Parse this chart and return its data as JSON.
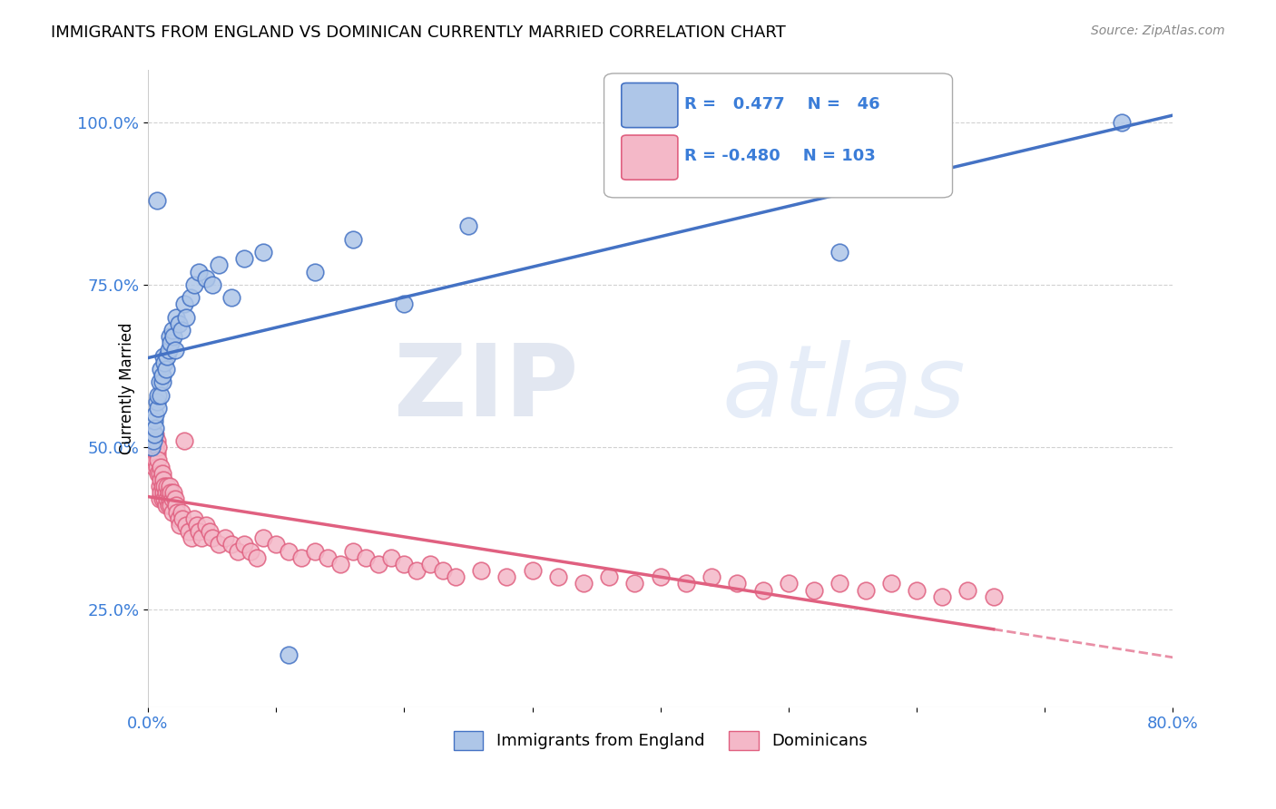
{
  "title": "IMMIGRANTS FROM ENGLAND VS DOMINICAN CURRENTLY MARRIED CORRELATION CHART",
  "source": "Source: ZipAtlas.com",
  "ylabel": "Currently Married",
  "ytick_labels": [
    "25.0%",
    "50.0%",
    "75.0%",
    "100.0%"
  ],
  "ytick_values": [
    0.25,
    0.5,
    0.75,
    1.0
  ],
  "xlim": [
    0.0,
    0.8
  ],
  "ylim": [
    0.1,
    1.08
  ],
  "england_scatter_color": "#aec6e8",
  "dominican_scatter_color": "#f4b8c8",
  "england_line_color": "#4472c4",
  "dominican_line_color": "#e06080",
  "england_R": 0.477,
  "england_N": 46,
  "dominican_R": -0.48,
  "dominican_N": 103,
  "england_x": [
    0.003,
    0.004,
    0.005,
    0.005,
    0.006,
    0.006,
    0.007,
    0.007,
    0.008,
    0.008,
    0.009,
    0.01,
    0.01,
    0.011,
    0.011,
    0.012,
    0.013,
    0.014,
    0.015,
    0.016,
    0.017,
    0.018,
    0.019,
    0.02,
    0.021,
    0.022,
    0.024,
    0.026,
    0.028,
    0.03,
    0.033,
    0.036,
    0.04,
    0.045,
    0.05,
    0.055,
    0.065,
    0.075,
    0.09,
    0.11,
    0.13,
    0.16,
    0.2,
    0.25,
    0.54,
    0.76
  ],
  "england_y": [
    0.5,
    0.51,
    0.52,
    0.54,
    0.53,
    0.55,
    0.57,
    0.88,
    0.56,
    0.58,
    0.6,
    0.62,
    0.58,
    0.6,
    0.61,
    0.64,
    0.63,
    0.62,
    0.64,
    0.65,
    0.67,
    0.66,
    0.68,
    0.67,
    0.65,
    0.7,
    0.69,
    0.68,
    0.72,
    0.7,
    0.73,
    0.75,
    0.77,
    0.76,
    0.75,
    0.78,
    0.73,
    0.79,
    0.8,
    0.18,
    0.77,
    0.82,
    0.72,
    0.84,
    0.8,
    1.0
  ],
  "dominican_x": [
    0.003,
    0.004,
    0.004,
    0.005,
    0.005,
    0.005,
    0.006,
    0.006,
    0.006,
    0.007,
    0.007,
    0.007,
    0.008,
    0.008,
    0.008,
    0.009,
    0.009,
    0.009,
    0.01,
    0.01,
    0.01,
    0.011,
    0.011,
    0.011,
    0.012,
    0.012,
    0.013,
    0.013,
    0.014,
    0.014,
    0.015,
    0.015,
    0.016,
    0.016,
    0.017,
    0.017,
    0.018,
    0.018,
    0.019,
    0.019,
    0.02,
    0.021,
    0.022,
    0.023,
    0.024,
    0.025,
    0.026,
    0.027,
    0.028,
    0.03,
    0.032,
    0.034,
    0.036,
    0.038,
    0.04,
    0.042,
    0.045,
    0.048,
    0.05,
    0.055,
    0.06,
    0.065,
    0.07,
    0.075,
    0.08,
    0.085,
    0.09,
    0.1,
    0.11,
    0.12,
    0.13,
    0.14,
    0.15,
    0.16,
    0.17,
    0.18,
    0.19,
    0.2,
    0.21,
    0.22,
    0.23,
    0.24,
    0.26,
    0.28,
    0.3,
    0.32,
    0.34,
    0.36,
    0.38,
    0.4,
    0.42,
    0.44,
    0.46,
    0.48,
    0.5,
    0.52,
    0.54,
    0.56,
    0.58,
    0.6,
    0.62,
    0.64,
    0.66
  ],
  "dominican_y": [
    0.5,
    0.52,
    0.48,
    0.51,
    0.49,
    0.47,
    0.5,
    0.52,
    0.48,
    0.51,
    0.49,
    0.47,
    0.5,
    0.46,
    0.48,
    0.44,
    0.46,
    0.42,
    0.47,
    0.45,
    0.43,
    0.46,
    0.44,
    0.42,
    0.45,
    0.43,
    0.44,
    0.42,
    0.43,
    0.41,
    0.44,
    0.42,
    0.43,
    0.41,
    0.44,
    0.42,
    0.43,
    0.41,
    0.42,
    0.4,
    0.43,
    0.42,
    0.41,
    0.4,
    0.39,
    0.38,
    0.4,
    0.39,
    0.51,
    0.38,
    0.37,
    0.36,
    0.39,
    0.38,
    0.37,
    0.36,
    0.38,
    0.37,
    0.36,
    0.35,
    0.36,
    0.35,
    0.34,
    0.35,
    0.34,
    0.33,
    0.36,
    0.35,
    0.34,
    0.33,
    0.34,
    0.33,
    0.32,
    0.34,
    0.33,
    0.32,
    0.33,
    0.32,
    0.31,
    0.32,
    0.31,
    0.3,
    0.31,
    0.3,
    0.31,
    0.3,
    0.29,
    0.3,
    0.29,
    0.3,
    0.29,
    0.3,
    0.29,
    0.28,
    0.29,
    0.28,
    0.29,
    0.28,
    0.29,
    0.28,
    0.27,
    0.28,
    0.27
  ],
  "watermark_zip": "ZIP",
  "watermark_atlas": "atlas",
  "background_color": "#ffffff",
  "grid_color": "#cccccc",
  "title_fontsize": 13,
  "tick_label_color": "#3b7dd8"
}
